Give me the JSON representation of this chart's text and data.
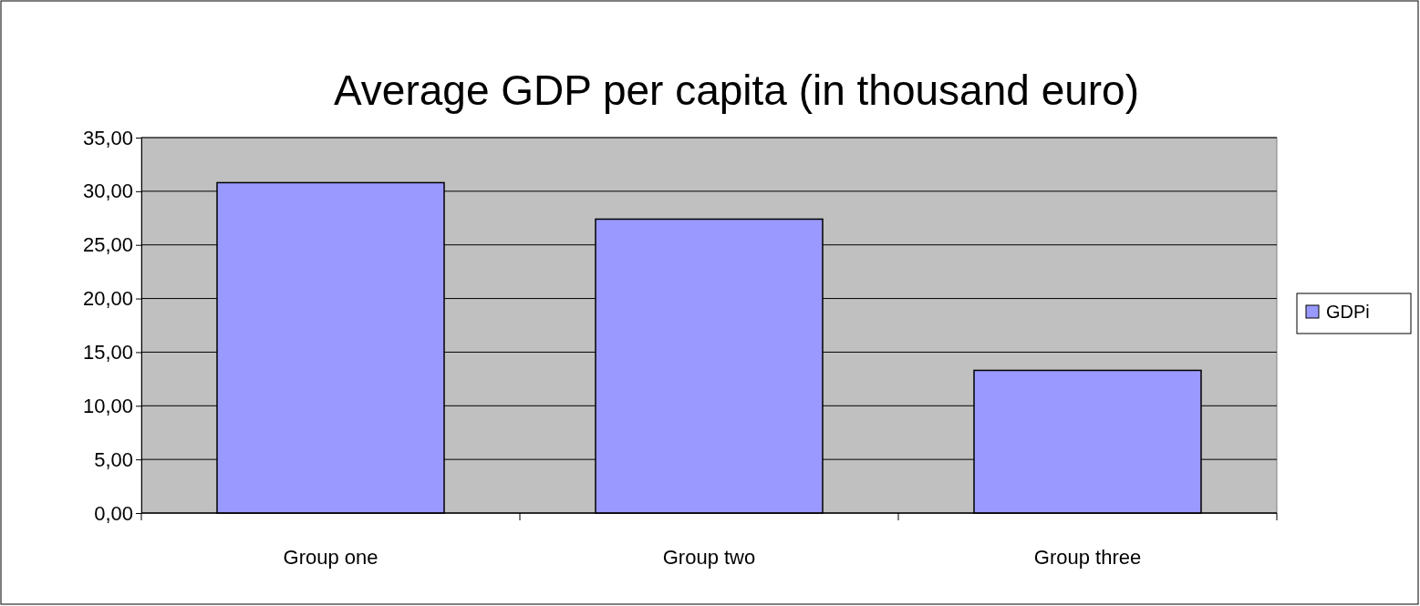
{
  "chart_data": {
    "type": "bar",
    "title": "Average GDP per capita (in thousand euro)",
    "categories": [
      "Group one",
      "Group two",
      "Group three"
    ],
    "series": [
      {
        "name": "GDPi",
        "color": "#9999ff",
        "values": [
          30.8,
          27.4,
          13.3
        ]
      }
    ],
    "ylim": [
      0,
      35
    ],
    "yticks": [
      {
        "value": 0,
        "label": "0,00"
      },
      {
        "value": 5,
        "label": "5,00"
      },
      {
        "value": 10,
        "label": "10,00"
      },
      {
        "value": 15,
        "label": "15,00"
      },
      {
        "value": 20,
        "label": "20,00"
      },
      {
        "value": 25,
        "label": "25,00"
      },
      {
        "value": 30,
        "label": "30,00"
      },
      {
        "value": 35,
        "label": "35,00"
      }
    ],
    "grid": "y",
    "legend": "right"
  }
}
